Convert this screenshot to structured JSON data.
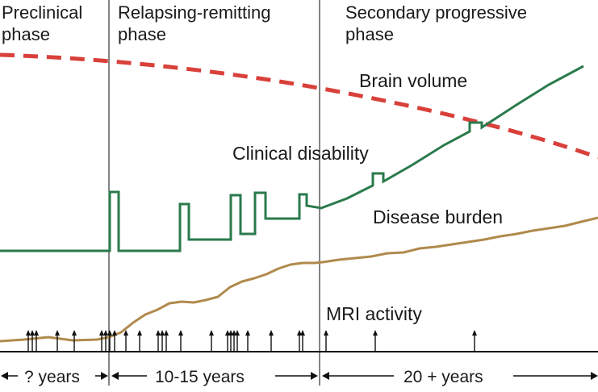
{
  "phases": [
    {
      "title": [
        "Preclinical",
        "phase"
      ],
      "duration": "? years"
    },
    {
      "title": [
        "Relapsing-remitting",
        "phase"
      ],
      "duration": "10-15 years"
    },
    {
      "title": [
        "Secondary progressive",
        "phase"
      ],
      "duration": "20 + years"
    }
  ],
  "curves": {
    "brain_volume": {
      "label": "Brain volume",
      "color": "#d9403a"
    },
    "clinical_disability": {
      "label": "Clinical disability",
      "color": "#2a7a4b"
    },
    "disease_burden": {
      "label": "Disease burden",
      "color": "#b08a4c"
    },
    "mri_activity": {
      "label": "MRI activity",
      "color": "#111111"
    }
  },
  "axis_color": "#111111"
}
